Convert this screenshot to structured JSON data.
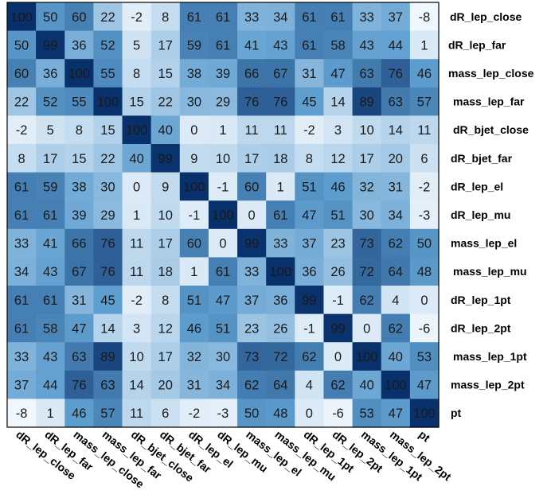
{
  "chart_data": {
    "type": "heatmap",
    "title": "",
    "xlabel": "",
    "ylabel": "",
    "color_scale": {
      "low": "#f7fbff",
      "mid": "#5f9fd0",
      "high": "#08306b",
      "min": -10,
      "max": 100
    },
    "row_labels": [
      "dR_lep_close",
      "dR_lep_far",
      "mass_lep_close",
      "mass_lep_far",
      "dR_bjet_close",
      "dR_bjet_far",
      "dR_lep_el",
      "dR_lep_mu",
      "mass_lep_el",
      "mass_lep_mu",
      "dR_lep_1pt",
      "dR_lep_2pt",
      "mass_lep_1pt",
      "mass_lep_2pt",
      "pt"
    ],
    "col_labels": [
      "dR_lep_close",
      "dR_lep_far",
      "mass_lep_close",
      "mass_lep_far",
      "dR_bjet_close",
      "dR_bjet_far",
      "dR_lep_el",
      "dR_lep_mu",
      "mass_lep_el",
      "mass_lep_mu",
      "dR_lep_1pt",
      "dR_lep_2pt",
      "mass_lep_1pt",
      "mass_lep_2pt",
      "pt"
    ],
    "values": [
      [
        100,
        50,
        60,
        22,
        -2,
        8,
        61,
        61,
        33,
        34,
        61,
        61,
        33,
        37,
        -8
      ],
      [
        50,
        99,
        36,
        52,
        5,
        17,
        59,
        61,
        41,
        43,
        61,
        58,
        43,
        44,
        1
      ],
      [
        60,
        36,
        100,
        55,
        8,
        15,
        38,
        39,
        66,
        67,
        31,
        47,
        63,
        76,
        46
      ],
      [
        22,
        52,
        55,
        100,
        15,
        22,
        30,
        29,
        76,
        76,
        45,
        14,
        89,
        63,
        57
      ],
      [
        -2,
        5,
        8,
        15,
        100,
        40,
        0,
        1,
        11,
        11,
        -2,
        3,
        10,
        14,
        11
      ],
      [
        8,
        17,
        15,
        22,
        40,
        99,
        9,
        10,
        17,
        18,
        8,
        12,
        17,
        20,
        6
      ],
      [
        61,
        59,
        38,
        30,
        0,
        9,
        100,
        -1,
        60,
        1,
        51,
        46,
        32,
        31,
        -2
      ],
      [
        61,
        61,
        39,
        29,
        1,
        10,
        -1,
        100,
        0,
        61,
        47,
        51,
        30,
        34,
        -3
      ],
      [
        33,
        41,
        66,
        76,
        11,
        17,
        60,
        0,
        99,
        33,
        37,
        23,
        73,
        62,
        50
      ],
      [
        34,
        43,
        67,
        76,
        11,
        18,
        1,
        61,
        33,
        100,
        36,
        26,
        72,
        64,
        48
      ],
      [
        61,
        61,
        31,
        45,
        -2,
        8,
        51,
        47,
        37,
        36,
        99,
        -1,
        62,
        4,
        0
      ],
      [
        61,
        58,
        47,
        14,
        3,
        12,
        46,
        51,
        23,
        26,
        -1,
        99,
        0,
        62,
        -6
      ],
      [
        33,
        43,
        63,
        89,
        10,
        17,
        32,
        30,
        73,
        72,
        62,
        0,
        100,
        40,
        53
      ],
      [
        37,
        44,
        76,
        63,
        14,
        20,
        31,
        34,
        62,
        64,
        4,
        62,
        40,
        100,
        47
      ],
      [
        -8,
        1,
        46,
        57,
        11,
        6,
        -2,
        -3,
        50,
        48,
        0,
        -6,
        53,
        47,
        100
      ]
    ]
  }
}
